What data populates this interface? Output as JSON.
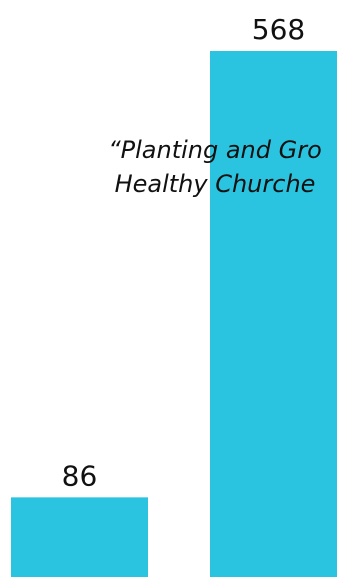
{
  "chart_data": {
    "type": "bar",
    "categories": [
      "",
      ""
    ],
    "values": [
      86,
      568
    ],
    "data_labels": [
      "86",
      "568"
    ],
    "ylim": [
      0,
      568
    ],
    "grid": false,
    "bar_color": "#2ac4e0"
  },
  "overlay": {
    "quote_line_1": "“Planting and Gro",
    "quote_line_2": "Healthy Churche"
  }
}
